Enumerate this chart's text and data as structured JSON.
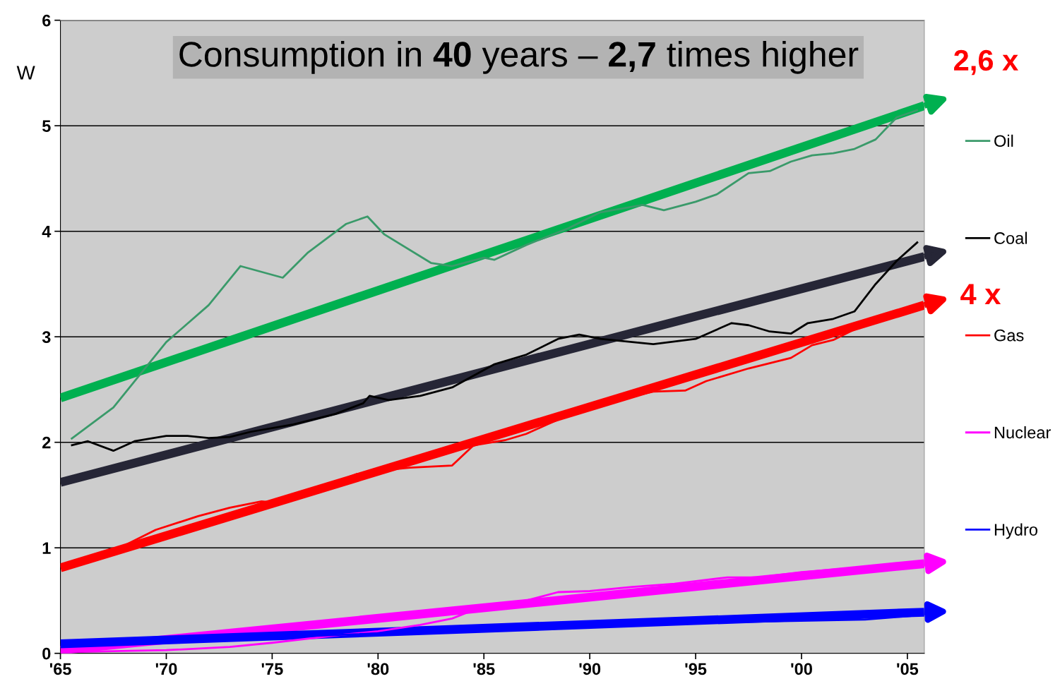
{
  "chart_data": {
    "type": "line",
    "title": "Consumption in 40 years – 2,7 times higher",
    "ylabel": "W",
    "xlim": [
      1965,
      2005.8
    ],
    "ylim": [
      0,
      6
    ],
    "xticks": [
      {
        "value": 1965,
        "label": "'65"
      },
      {
        "value": 1970,
        "label": "'70"
      },
      {
        "value": 1975,
        "label": "'75"
      },
      {
        "value": 1980,
        "label": "'80"
      },
      {
        "value": 1985,
        "label": "'85"
      },
      {
        "value": 1990,
        "label": "'90"
      },
      {
        "value": 1995,
        "label": "'95"
      },
      {
        "value": 2000,
        "label": "'00"
      },
      {
        "value": 2005,
        "label": "'05"
      }
    ],
    "yticks": [
      0,
      1,
      2,
      3,
      4,
      5,
      6
    ],
    "grid": "y",
    "legend": "right",
    "annotations": [
      "2,6 x",
      "4 x"
    ],
    "series": [
      {
        "name": "Oil",
        "color": "#3a9a6a",
        "x": [
          1965.5,
          1967.5,
          1970,
          1972,
          1973.5,
          1975.5,
          1976.7,
          1978.5,
          1979.5,
          1980.3,
          1982.5,
          1983.5,
          1985,
          1985.5,
          1987,
          1989,
          1990.5,
          1992.5,
          1993.5,
          1995,
          1996,
          1997.5,
          1998.5,
          1999.5,
          2000.5,
          2001.5,
          2002.5,
          2003.5,
          2004.5,
          2005.5
        ],
        "values": [
          2.03,
          2.33,
          2.95,
          3.3,
          3.67,
          3.56,
          3.8,
          4.07,
          4.14,
          3.97,
          3.7,
          3.67,
          3.75,
          3.73,
          3.87,
          4.03,
          4.18,
          4.25,
          4.2,
          4.28,
          4.35,
          4.55,
          4.57,
          4.66,
          4.72,
          4.74,
          4.78,
          4.87,
          5.08,
          5.15
        ]
      },
      {
        "name": "Coal",
        "color": "#000000",
        "x": [
          1965.5,
          1966.3,
          1967.5,
          1968.5,
          1970,
          1971,
          1972,
          1973,
          1974,
          1976,
          1978,
          1979.3,
          1979.6,
          1980.5,
          1982,
          1983.5,
          1984.5,
          1985.5,
          1987,
          1988.5,
          1989.5,
          1990.5,
          1992,
          1993,
          1995,
          1996.7,
          1997.5,
          1998.5,
          1999.5,
          2000.3,
          2001.5,
          2002.5,
          2003.5,
          2004.5,
          2005.5
        ],
        "values": [
          1.97,
          2.01,
          1.92,
          2.01,
          2.06,
          2.06,
          2.04,
          2.05,
          2.1,
          2.17,
          2.27,
          2.37,
          2.44,
          2.4,
          2.44,
          2.52,
          2.63,
          2.74,
          2.83,
          2.98,
          3.02,
          2.98,
          2.95,
          2.93,
          2.98,
          3.13,
          3.11,
          3.05,
          3.03,
          3.13,
          3.17,
          3.24,
          3.5,
          3.72,
          3.9
        ]
      },
      {
        "name": "Gas",
        "color": "#ff0000",
        "x": [
          1966,
          1967.5,
          1969.5,
          1971.5,
          1973,
          1974.5,
          1975,
          1977,
          1979,
          1980,
          1981.5,
          1982.5,
          1983.5,
          1984.5,
          1986,
          1987,
          1988,
          1989.5,
          1991,
          1993,
          1994.5,
          1995.5,
          1997.5,
          1999.5,
          2000.5,
          2001.5,
          2002.5,
          2004,
          2005.5
        ],
        "values": [
          0.85,
          0.97,
          1.17,
          1.3,
          1.38,
          1.44,
          1.43,
          1.55,
          1.7,
          1.73,
          1.76,
          1.77,
          1.78,
          1.97,
          2.02,
          2.08,
          2.17,
          2.3,
          2.39,
          2.48,
          2.49,
          2.58,
          2.7,
          2.8,
          2.92,
          2.97,
          3.07,
          3.2,
          3.27
        ]
      },
      {
        "name": "Nuclear",
        "color": "#ff00ff",
        "x": [
          1965,
          1970,
          1973,
          1975,
          1978,
          1980,
          1982,
          1983.5,
          1985,
          1987,
          1988.5,
          1990,
          1992,
          1994,
          1996.5,
          1998,
          2000,
          2002.5
        ],
        "values": [
          0.01,
          0.03,
          0.06,
          0.1,
          0.17,
          0.21,
          0.27,
          0.33,
          0.45,
          0.5,
          0.58,
          0.59,
          0.63,
          0.66,
          0.72,
          0.72,
          0.77,
          0.81
        ]
      },
      {
        "name": "Hydro",
        "color": "#0000ff",
        "x": [
          1965,
          1975,
          1985,
          1995,
          2003,
          2005.5
        ],
        "values": [
          0.08,
          0.15,
          0.23,
          0.29,
          0.32,
          0.36
        ]
      },
      {
        "color": "#00b050",
        "x": [
          1965,
          2005.8
        ],
        "values": [
          2.42,
          5.19
        ]
      },
      {
        "color": "#262636",
        "x": [
          1965,
          2005.8
        ],
        "values": [
          1.62,
          3.76
        ]
      },
      {
        "color": "#ff0000",
        "x": [
          1965,
          2005.8
        ],
        "values": [
          0.81,
          3.3
        ]
      },
      {
        "color": "#ff00ff",
        "x": [
          1965,
          2005.8
        ],
        "values": [
          0.03,
          0.85
        ]
      },
      {
        "color": "#0000ff",
        "x": [
          1965,
          2005.8
        ],
        "values": [
          0.09,
          0.39
        ]
      }
    ]
  }
}
